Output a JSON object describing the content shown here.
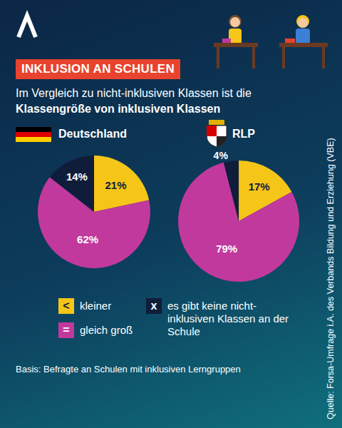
{
  "header": {
    "tag": "INKLUSION AN SCHULEN",
    "subtitle": {
      "text": "Im Vergleich zu nicht-inklusiven Klassen ist die ",
      "bold": "Klassengröße von inklusiven Klassen"
    }
  },
  "chart_data": [
    {
      "type": "pie",
      "title": "Deutschland",
      "categories": [
        "kleiner",
        "gleich groß",
        "es gibt keine nicht-inklusiven Klassen an der Schule"
      ],
      "values": [
        21,
        62,
        14
      ],
      "value_labels": [
        "21%",
        "62%",
        "14%"
      ],
      "colors": [
        "#f5c518",
        "#c2399e",
        "#101d3a"
      ],
      "data_labels": true
    },
    {
      "type": "pie",
      "title": "RLP",
      "categories": [
        "kleiner",
        "gleich groß",
        "es gibt keine nicht-inklusiven Klassen an der Schule"
      ],
      "values": [
        17,
        79,
        4
      ],
      "value_labels": [
        "17%",
        "79%",
        "4%"
      ],
      "colors": [
        "#f5c518",
        "#c2399e",
        "#101d3a"
      ],
      "data_labels": true
    }
  ],
  "key": {
    "symbols": [
      "<",
      "=",
      "x"
    ]
  },
  "footnote": "Basis: Befragte an Schulen mit inklusiven Lerngruppen",
  "source": "Quelle: Forsa-Umfrage i.A. des Verbands Bildung und Erziehung (VBE)"
}
